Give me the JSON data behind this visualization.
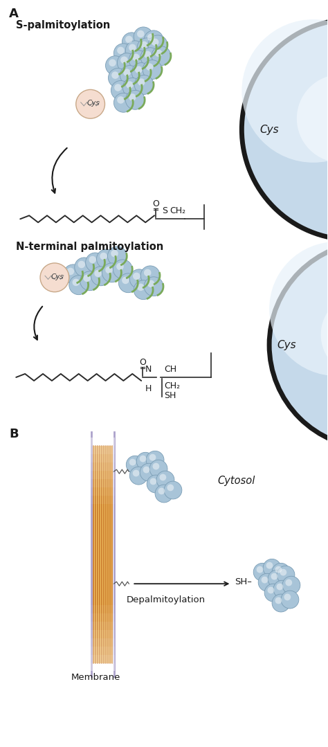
{
  "bg_color": "#ffffff",
  "sphere_color": "#a8c4d8",
  "sphere_edge": "#7a9db5",
  "green_accent": "#7aaa5a",
  "cys_circle_color": "#f5ddd0",
  "cys_circle_edge": "#c8a888",
  "big_circle_edge": "#1a1a1a",
  "chain_color": "#2a2a2a",
  "text_color": "#1a1a1a",
  "arrow_color": "#1a1a1a",
  "label_A": "A",
  "label_B": "B",
  "title_s_palm": "S-palmitoylation",
  "title_n_palm": "N-terminal palmitoylation",
  "cys_label": "Cys",
  "cytosol_label": "Cytosol",
  "membrane_label": "Membrane",
  "depalm_label": "Depalmitoylation"
}
